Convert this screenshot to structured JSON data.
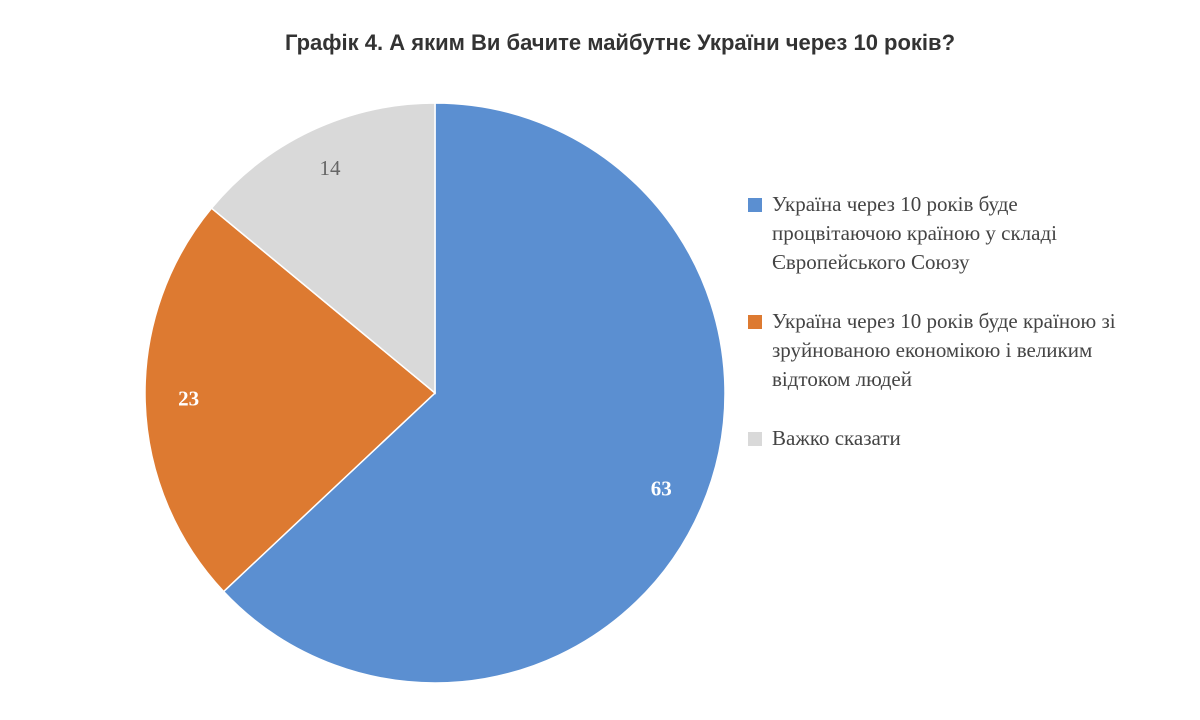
{
  "chart_data": {
    "type": "pie",
    "title": "Графік 4. А яким Ви бачите майбутнє України через 10 років?",
    "categories": [
      "Україна через 10 років буде процвітаючою країною у складі Європейського Союзу",
      "Україна через 10 років буде країною зі зруйнованою економікою і великим відтоком людей",
      "Важко сказати"
    ],
    "values": [
      63,
      23,
      14
    ],
    "colors": [
      "#5b8fd1",
      "#dd7a31",
      "#d9d9d9"
    ],
    "legend": "right"
  }
}
